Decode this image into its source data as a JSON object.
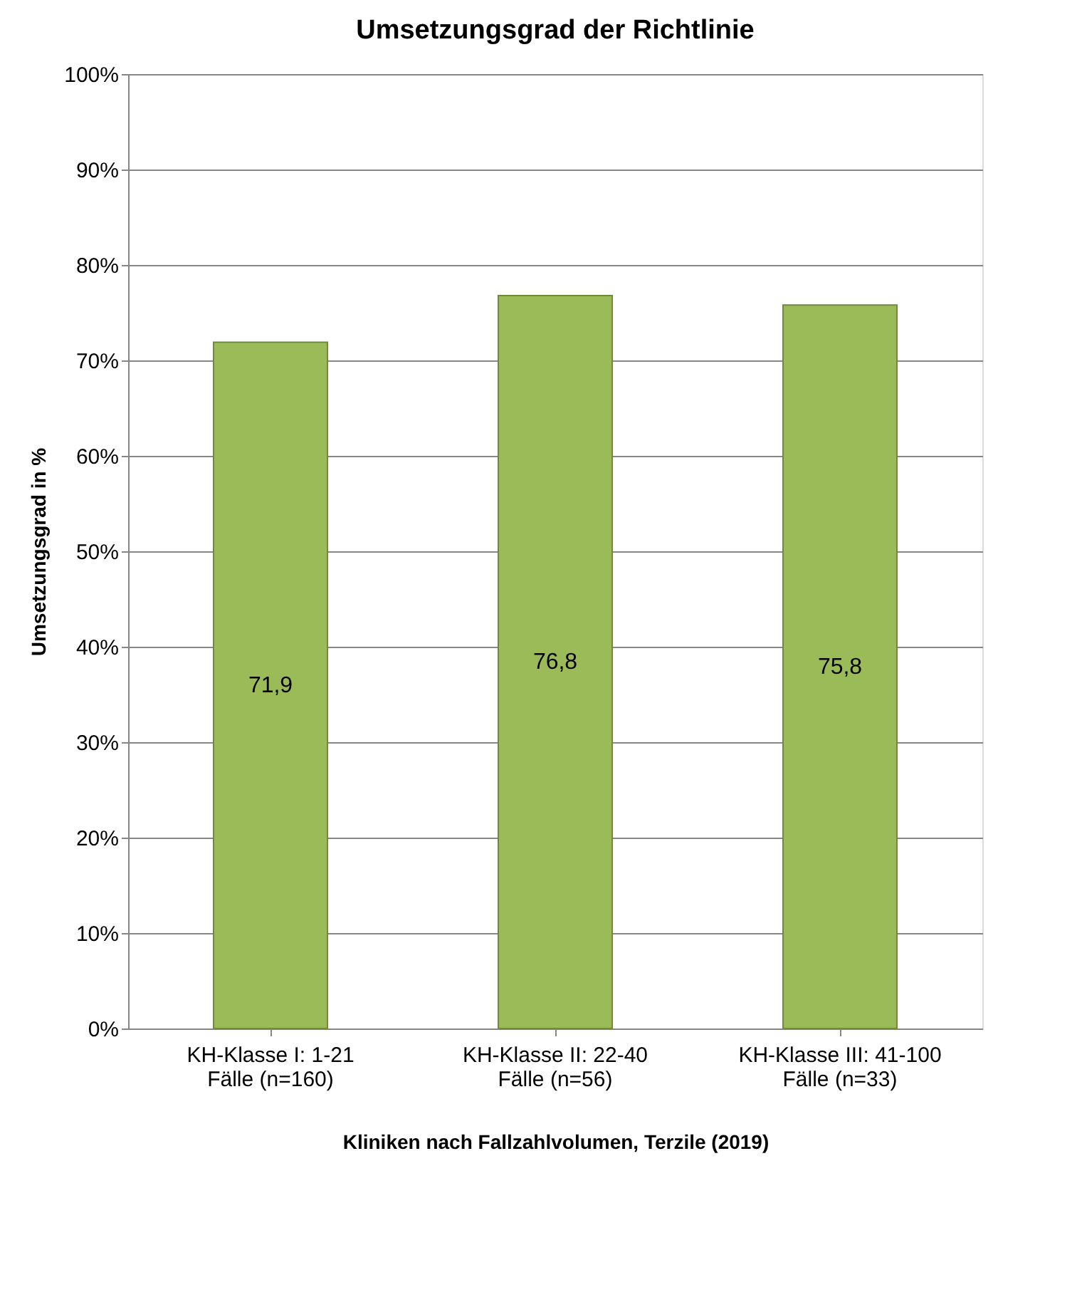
{
  "chart_data": {
    "type": "bar",
    "title": "Umsetzungsgrad der Richtlinie",
    "xlabel": "Kliniken nach Fallzahlvolumen, Terzile (2019)",
    "ylabel": "Umsetzungsgrad in %",
    "categories": [
      "KH-Klasse I: 1-21\nFälle (n=160)",
      "KH-Klasse II: 22-40\nFälle (n=56)",
      "KH-Klasse III: 41-100\nFälle (n=33)"
    ],
    "values": [
      71.9,
      76.8,
      75.8
    ],
    "value_labels": [
      "71,9",
      "76,8",
      "75,8"
    ],
    "color": "#9bbb59",
    "ylim": [
      0,
      100
    ],
    "yticks": [
      {
        "value": 0,
        "label": "0%"
      },
      {
        "value": 10,
        "label": "10%"
      },
      {
        "value": 20,
        "label": "20%"
      },
      {
        "value": 30,
        "label": "30%"
      },
      {
        "value": 40,
        "label": "40%"
      },
      {
        "value": 50,
        "label": "50%"
      },
      {
        "value": 60,
        "label": "60%"
      },
      {
        "value": 70,
        "label": "70%"
      },
      {
        "value": 80,
        "label": "80%"
      },
      {
        "value": 90,
        "label": "90%"
      },
      {
        "value": 100,
        "label": "100%"
      }
    ],
    "grid": "y"
  }
}
